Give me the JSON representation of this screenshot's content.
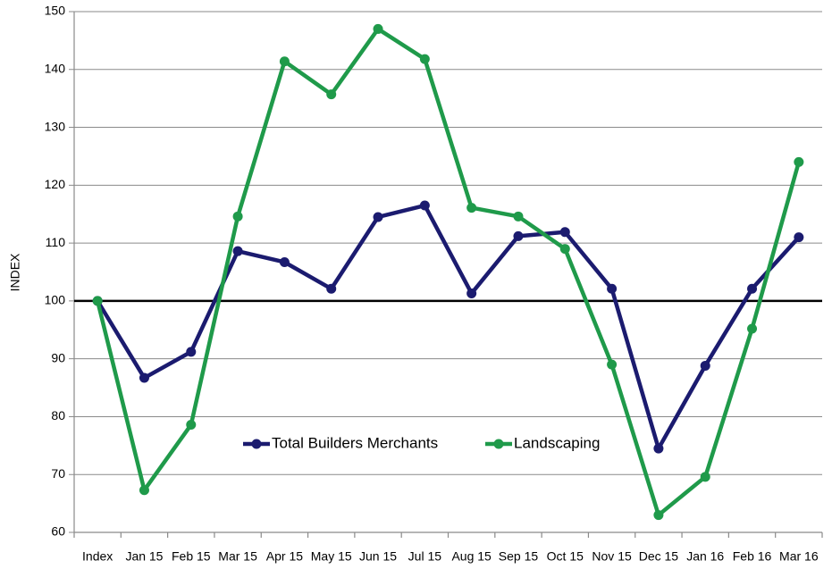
{
  "chart_data": {
    "type": "line",
    "categories": [
      "Index",
      "Jan 15",
      "Feb 15",
      "Mar 15",
      "Apr 15",
      "May 15",
      "Jun 15",
      "Jul 15",
      "Aug 15",
      "Sep 15",
      "Oct 15",
      "Nov 15",
      "Dec 15",
      "Jan 16",
      "Feb 16",
      "Mar 16"
    ],
    "series": [
      {
        "name": "Total Builders Merchants",
        "color": "#1b1b6f",
        "values": [
          100,
          86.7,
          91.2,
          108.6,
          106.7,
          102.1,
          114.5,
          116.5,
          101.3,
          111.2,
          111.9,
          102.1,
          74.5,
          88.8,
          102.1,
          111
        ]
      },
      {
        "name": "Landscaping",
        "color": "#1f9a4a",
        "values": [
          100,
          67.3,
          78.6,
          114.6,
          141.4,
          135.7,
          147,
          141.8,
          116.1,
          114.6,
          109,
          89,
          63,
          69.6,
          95.2,
          124
        ]
      }
    ],
    "ylabel": "INDEX",
    "ylim": [
      60,
      150
    ],
    "yticks": [
      60,
      70,
      80,
      90,
      100,
      110,
      120,
      130,
      140,
      150
    ],
    "reference_line": 100,
    "grid": true,
    "legend": "bottom"
  }
}
